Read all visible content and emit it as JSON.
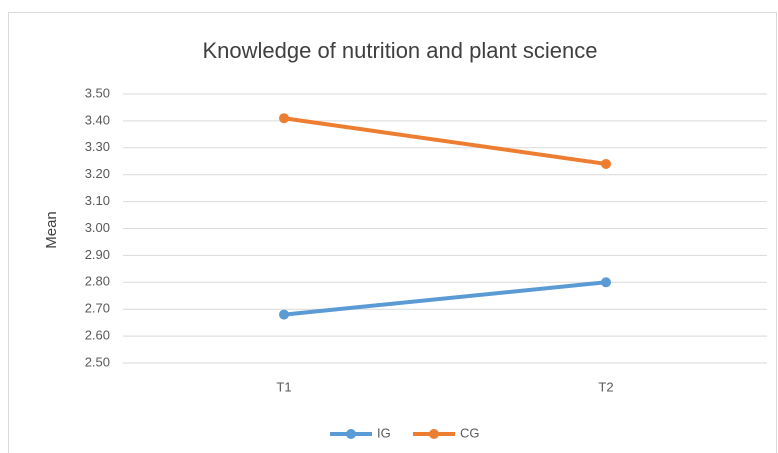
{
  "chart_data": {
    "type": "line",
    "title": "Knowledge of nutrition and plant science",
    "y_label": "Mean",
    "categories": [
      "T1",
      "T2"
    ],
    "series": [
      {
        "name": "IG",
        "color": "#5b9bd5",
        "values": [
          2.68,
          2.8
        ]
      },
      {
        "name": "CG",
        "color": "#ed7d31",
        "values": [
          3.41,
          3.24
        ]
      }
    ],
    "ylim": [
      2.5,
      3.5
    ],
    "yticks": [
      {
        "value": 2.5,
        "label": "2.50"
      },
      {
        "value": 2.6,
        "label": "2.60"
      },
      {
        "value": 2.7,
        "label": "2.70"
      },
      {
        "value": 2.8,
        "label": "2.80"
      },
      {
        "value": 2.9,
        "label": "2.90"
      },
      {
        "value": 3.0,
        "label": "3.00"
      },
      {
        "value": 3.1,
        "label": "3.10"
      },
      {
        "value": 3.2,
        "label": "3.20"
      },
      {
        "value": 3.3,
        "label": "3.30"
      },
      {
        "value": 3.4,
        "label": "3.40"
      },
      {
        "value": 3.5,
        "label": "3.50"
      }
    ],
    "grid": true,
    "legend": "bottom"
  }
}
